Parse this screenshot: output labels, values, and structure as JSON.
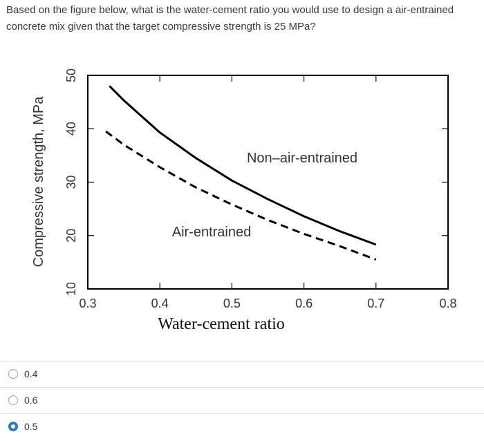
{
  "question": {
    "text": "Based on the figure below, what is the water-cement ratio you would use to design a air-entrained concrete mix given that the target compressive strength is 25 MPa?"
  },
  "chart_data": {
    "type": "line",
    "xlabel": "Water-cement ratio",
    "ylabel": "Compressive strength, MPa",
    "xlim": [
      0.3,
      0.8
    ],
    "ylim": [
      10,
      50
    ],
    "x_ticks": [
      "0.3",
      "0.4",
      "0.5",
      "0.6",
      "0.7",
      "0.8"
    ],
    "y_ticks": [
      "10",
      "20",
      "30",
      "40",
      "50"
    ],
    "grid": false,
    "series": [
      {
        "name": "Non–air-entrained",
        "style": "solid",
        "x": [
          0.33,
          0.35,
          0.4,
          0.45,
          0.5,
          0.55,
          0.6,
          0.65,
          0.7
        ],
        "y": [
          48.0,
          45.3,
          39.3,
          34.5,
          30.3,
          26.8,
          23.6,
          20.8,
          18.3
        ]
      },
      {
        "name": "Air-entrained",
        "style": "dashed",
        "x": [
          0.325,
          0.35,
          0.4,
          0.45,
          0.5,
          0.55,
          0.6,
          0.65,
          0.7
        ],
        "y": [
          39.5,
          37.0,
          32.8,
          29.0,
          25.8,
          22.9,
          20.3,
          18.0,
          15.5
        ]
      }
    ]
  },
  "answers": [
    {
      "label": "0.4",
      "selected": false
    },
    {
      "label": "0.6",
      "selected": false
    },
    {
      "label": "0.5",
      "selected": true
    }
  ],
  "colors": {
    "accent": "#2b7abc",
    "text": "#2d3b45",
    "divider": "#dfe2e5"
  }
}
